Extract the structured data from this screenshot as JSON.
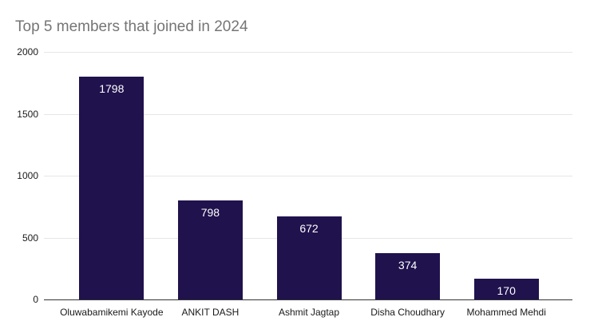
{
  "chart_data": {
    "type": "bar",
    "title": "Top 5 members that joined in 2024",
    "categories": [
      "Oluwabamikemi Kayode",
      "ANKIT DASH",
      "Ashmit Jagtap",
      "Disha Choudhary",
      "Mohammed Mehdi"
    ],
    "values": [
      1798,
      798,
      672,
      374,
      170
    ],
    "xlabel": "",
    "ylabel": "",
    "ylim": [
      0,
      2000
    ],
    "yticks": [
      0,
      500,
      1000,
      1500,
      2000
    ],
    "grid": "horizontal",
    "legend_position": "none",
    "colors": {
      "bar": "#20124d",
      "value_label": "#ffffff",
      "title": "#757575",
      "axis_label": "#1a1a1a",
      "gridline": "#e6e6e6",
      "baseline": "#333333",
      "background": "#ffffff"
    }
  }
}
